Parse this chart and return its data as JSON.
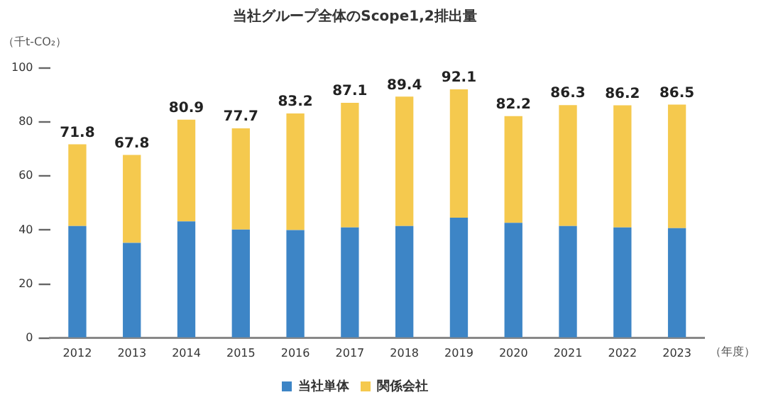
{
  "chart_data": {
    "type": "bar",
    "title": "当社グループ全体のScope1,2排出量",
    "ylabel": "（千t-CO₂）",
    "xlabel": "（年度）",
    "categories": [
      "2012",
      "2013",
      "2014",
      "2015",
      "2016",
      "2017",
      "2018",
      "2019",
      "2020",
      "2021",
      "2022",
      "2023"
    ],
    "series": [
      {
        "name": "当社単体",
        "color": "#3d85c6",
        "values": [
          41.5,
          35.3,
          43.2,
          40.2,
          40.0,
          41.0,
          41.5,
          44.6,
          42.7,
          41.5,
          41.0,
          40.7
        ]
      },
      {
        "name": "関係会社",
        "color": "#f5c94e",
        "values": [
          30.3,
          32.5,
          37.7,
          37.5,
          43.2,
          46.1,
          47.9,
          47.5,
          39.5,
          44.8,
          45.2,
          45.8
        ]
      }
    ],
    "stacked": true,
    "totals": [
      "71.8",
      "67.8",
      "80.9",
      "77.7",
      "83.2",
      "87.1",
      "89.4",
      "92.1",
      "82.2",
      "86.3",
      "86.2",
      "86.5"
    ],
    "ylim": [
      0,
      100
    ],
    "yticks": [
      0,
      20,
      40,
      60,
      80,
      100
    ],
    "grid": false,
    "legend": "bottom"
  }
}
